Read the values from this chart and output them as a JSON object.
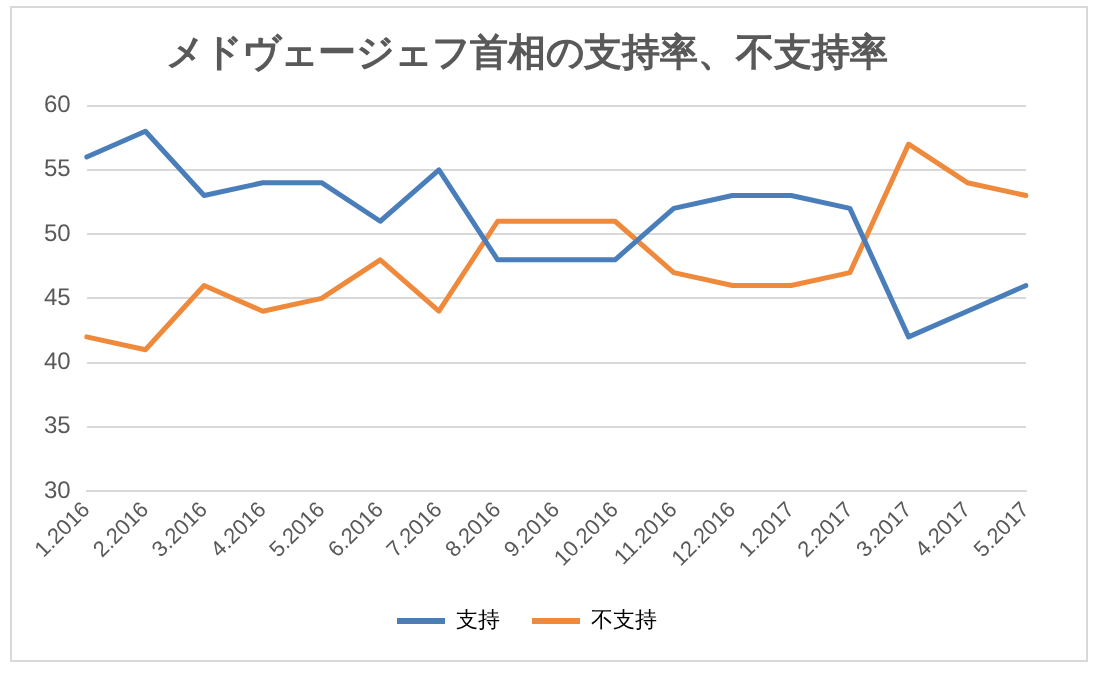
{
  "chart_data": {
    "type": "line",
    "title": "メドヴェージェフ首相の支持率、不支持率",
    "categories": [
      "1.2016",
      "2.2016",
      "3.2016",
      "4.2016",
      "5.2016",
      "6.2016",
      "7.2016",
      "8.2016",
      "9.2016",
      "10.2016",
      "11.2016",
      "12.2016",
      "1.2017",
      "2.2017",
      "3.2017",
      "4.2017",
      "5.2017"
    ],
    "series": [
      {
        "name": "支持",
        "color": "#4a7ebb",
        "values": [
          56,
          58,
          53,
          54,
          54,
          51,
          55,
          48,
          48,
          48,
          52,
          53,
          53,
          52,
          42,
          44,
          46
        ]
      },
      {
        "name": "不支持",
        "color": "#ef8a3c",
        "values": [
          42,
          41,
          46,
          44,
          45,
          48,
          44,
          51,
          51,
          51,
          47,
          46,
          46,
          47,
          57,
          54,
          53
        ]
      }
    ],
    "ylim": [
      30,
      60
    ],
    "yticks": [
      30,
      35,
      40,
      45,
      50,
      55,
      60
    ],
    "grid": "y",
    "legend": "bottom",
    "marker": "none",
    "line_style": "solid"
  }
}
